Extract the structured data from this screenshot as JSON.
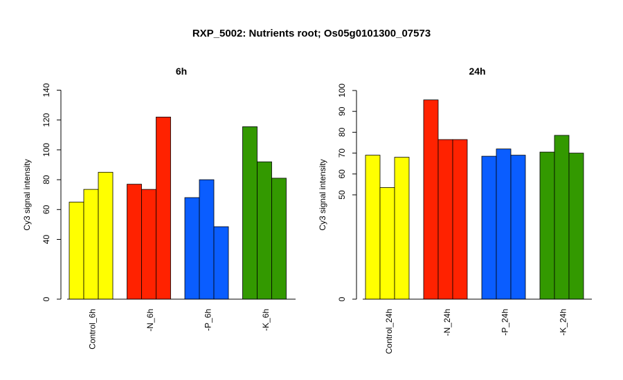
{
  "title": "RXP_5002: Nutrients root; Os05g0101300_07573",
  "chart_data": [
    {
      "type": "bar",
      "title": "6h",
      "xlabel": "",
      "ylabel": "Cy3 signal intensity",
      "categories": [
        "Control_6h",
        "-N_6h",
        "-P_6h",
        "-K_6h"
      ],
      "y_ticks": [
        "0",
        "40",
        "60",
        "80",
        "100",
        "120",
        "140"
      ],
      "ylim": [
        0,
        140
      ],
      "grid": false,
      "groups": [
        {
          "category": "Control_6h",
          "color": "#ffff00",
          "values": [
            65,
            73.5,
            85
          ]
        },
        {
          "category": "-N_6h",
          "color": "#ff2200",
          "values": [
            77,
            73.5,
            122
          ]
        },
        {
          "category": "-P_6h",
          "color": "#0a5dff",
          "values": [
            68,
            80,
            48.5
          ]
        },
        {
          "category": "-K_6h",
          "color": "#339900",
          "values": [
            115.5,
            92,
            81
          ]
        }
      ]
    },
    {
      "type": "bar",
      "title": "24h",
      "xlabel": "",
      "ylabel": "Cy3 signal intensity",
      "categories": [
        "Control_24h",
        "-N_24h",
        "-P_24h",
        "-K_24h"
      ],
      "y_ticks": [
        "0",
        "50",
        "60",
        "70",
        "80",
        "90",
        "100"
      ],
      "ylim": [
        0,
        100
      ],
      "grid": false,
      "groups": [
        {
          "category": "Control_24h",
          "color": "#ffff00",
          "values": [
            69,
            53.5,
            68
          ]
        },
        {
          "category": "-N_24h",
          "color": "#ff2200",
          "values": [
            95.5,
            76.5,
            76.5
          ]
        },
        {
          "category": "-P_24h",
          "color": "#0a5dff",
          "values": [
            68.5,
            72,
            69
          ]
        },
        {
          "category": "-K_24h",
          "color": "#339900",
          "values": [
            70.5,
            78.5,
            70
          ]
        }
      ]
    }
  ]
}
